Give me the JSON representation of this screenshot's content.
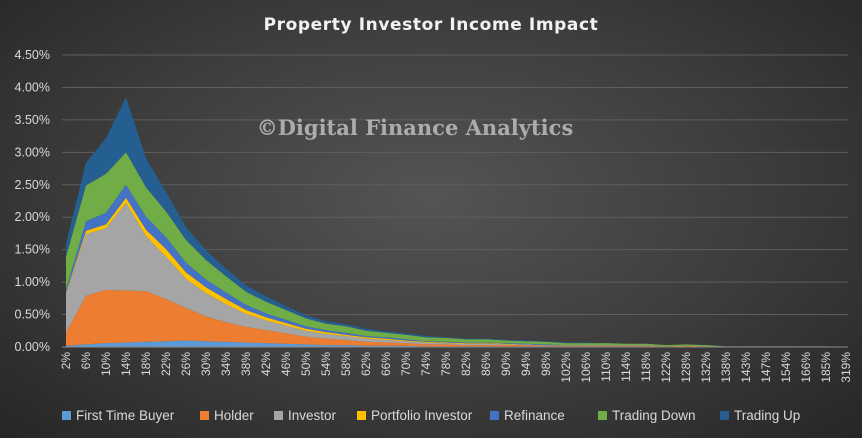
{
  "chart_data": {
    "type": "area",
    "stacked": true,
    "title": "Property Investor Income Impact",
    "watermark": "©Digital Finance Analytics",
    "xlabel": "",
    "ylabel": "",
    "ylim": [
      0,
      4.5
    ],
    "y_unit": "%",
    "y_ticks": [
      "0.00%",
      "0.50%",
      "1.00%",
      "1.50%",
      "2.00%",
      "2.50%",
      "3.00%",
      "3.50%",
      "4.00%",
      "4.50%"
    ],
    "x_tick_labels": [
      "2%",
      "6%",
      "10%",
      "14%",
      "18%",
      "22%",
      "26%",
      "30%",
      "34%",
      "38%",
      "42%",
      "46%",
      "50%",
      "54%",
      "58%",
      "62%",
      "66%",
      "70%",
      "74%",
      "78%",
      "82%",
      "86%",
      "90%",
      "94%",
      "98%",
      "102%",
      "106%",
      "110%",
      "114%",
      "118%",
      "122%",
      "128%",
      "132%",
      "138%",
      "143%",
      "147%",
      "154%",
      "166%",
      "185%",
      "319%"
    ],
    "grid": true,
    "legend_position": "bottom",
    "series": [
      {
        "name": "First Time Buyer",
        "color": "#5b9bd5",
        "values": [
          0.02,
          0.04,
          0.06,
          0.07,
          0.08,
          0.09,
          0.1,
          0.09,
          0.08,
          0.07,
          0.06,
          0.05,
          0.04,
          0.03,
          0.03,
          0.02,
          0.02,
          0.02,
          0.01,
          0.01,
          0.01,
          0.01,
          0.01,
          0.01,
          0.01,
          0.01,
          0.01,
          0.01,
          0.01,
          0.01,
          0.0,
          0.01,
          0.0,
          0.0,
          0.0,
          0.0,
          0.0,
          0.0,
          0.0,
          0.0
        ]
      },
      {
        "name": "Holder",
        "color": "#ed7d31",
        "values": [
          0.2,
          0.75,
          0.82,
          0.8,
          0.78,
          0.65,
          0.5,
          0.38,
          0.3,
          0.24,
          0.2,
          0.16,
          0.12,
          0.1,
          0.08,
          0.06,
          0.05,
          0.04,
          0.03,
          0.03,
          0.02,
          0.02,
          0.02,
          0.02,
          0.01,
          0.01,
          0.01,
          0.01,
          0.01,
          0.01,
          0.01,
          0.01,
          0.01,
          0.0,
          0.0,
          0.0,
          0.0,
          0.0,
          0.0,
          0.0
        ]
      },
      {
        "name": "Investor",
        "color": "#a5a5a5",
        "values": [
          0.6,
          0.95,
          0.95,
          1.35,
          0.85,
          0.65,
          0.45,
          0.36,
          0.28,
          0.2,
          0.15,
          0.12,
          0.09,
          0.07,
          0.06,
          0.05,
          0.04,
          0.03,
          0.03,
          0.02,
          0.02,
          0.02,
          0.01,
          0.01,
          0.01,
          0.01,
          0.01,
          0.01,
          0.01,
          0.01,
          0.0,
          0.0,
          0.0,
          0.0,
          0.0,
          0.0,
          0.0,
          0.0,
          0.0,
          0.0
        ]
      },
      {
        "name": "Portfolio Investor",
        "color": "#ffc000",
        "values": [
          0.02,
          0.05,
          0.06,
          0.08,
          0.1,
          0.12,
          0.1,
          0.09,
          0.08,
          0.06,
          0.05,
          0.04,
          0.03,
          0.03,
          0.02,
          0.02,
          0.02,
          0.01,
          0.01,
          0.01,
          0.01,
          0.01,
          0.01,
          0.0,
          0.0,
          0.0,
          0.0,
          0.0,
          0.0,
          0.0,
          0.0,
          0.0,
          0.0,
          0.0,
          0.0,
          0.0,
          0.0,
          0.0,
          0.0,
          0.0
        ]
      },
      {
        "name": "Refinance",
        "color": "#4472c4",
        "values": [
          0.05,
          0.15,
          0.18,
          0.2,
          0.2,
          0.18,
          0.15,
          0.12,
          0.1,
          0.08,
          0.06,
          0.05,
          0.04,
          0.03,
          0.03,
          0.02,
          0.02,
          0.02,
          0.01,
          0.01,
          0.01,
          0.01,
          0.01,
          0.01,
          0.01,
          0.0,
          0.0,
          0.0,
          0.0,
          0.0,
          0.0,
          0.0,
          0.0,
          0.0,
          0.0,
          0.0,
          0.0,
          0.0,
          0.0,
          0.0
        ]
      },
      {
        "name": "Trading Down",
        "color": "#70ad47",
        "values": [
          0.5,
          0.55,
          0.6,
          0.5,
          0.45,
          0.4,
          0.35,
          0.3,
          0.25,
          0.2,
          0.18,
          0.15,
          0.12,
          0.1,
          0.1,
          0.08,
          0.07,
          0.07,
          0.06,
          0.06,
          0.05,
          0.05,
          0.04,
          0.04,
          0.04,
          0.03,
          0.03,
          0.03,
          0.02,
          0.02,
          0.02,
          0.02,
          0.02,
          0.01,
          0.01,
          0.01,
          0.01,
          0.01,
          0.01,
          0.0
        ]
      },
      {
        "name": "Trading Up",
        "color": "#255e91",
        "values": [
          0.2,
          0.35,
          0.55,
          0.85,
          0.45,
          0.3,
          0.2,
          0.15,
          0.12,
          0.1,
          0.08,
          0.06,
          0.05,
          0.04,
          0.03,
          0.03,
          0.02,
          0.02,
          0.02,
          0.01,
          0.01,
          0.01,
          0.01,
          0.01,
          0.01,
          0.01,
          0.01,
          0.0,
          0.0,
          0.0,
          0.0,
          0.0,
          0.0,
          0.0,
          0.0,
          0.0,
          0.0,
          0.0,
          0.0,
          0.0
        ]
      }
    ]
  }
}
